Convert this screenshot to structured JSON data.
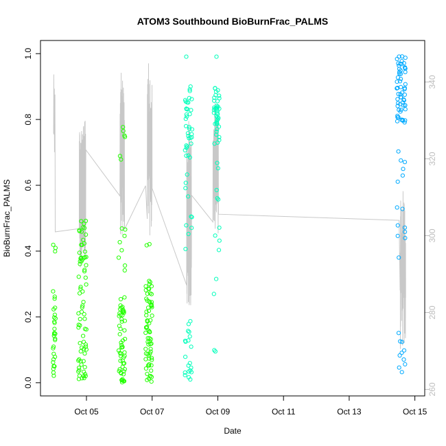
{
  "chart_data": {
    "type": "scatter",
    "title": "ATOM3 Southbound BioBurnFrac_PALMS",
    "xlabel": "Date",
    "ylabel": "BioBurnFrac_PALMS",
    "x_ticks": [
      "Oct 05",
      "Oct 07",
      "Oct 09",
      "Oct 11",
      "Oct 13",
      "Oct 15"
    ],
    "y_ticks": [
      "0.0",
      "0.2",
      "0.4",
      "0.6",
      "0.8",
      "1.0"
    ],
    "y2_ticks": [
      "260",
      "280",
      "300",
      "320",
      "340"
    ],
    "xlim_days": [
      3.6,
      15.3
    ],
    "ylim": [
      -0.04,
      1.04
    ],
    "y2lim": [
      258.3,
      350.8
    ],
    "plot_box": true,
    "grid": false,
    "secondary_series_color": "#c8c8c8",
    "point_color_scale": [
      "#22ff00",
      "#00ffbb",
      "#00aaff"
    ],
    "note": "Points: BioBurnFrac_PALMS (left axis), open circles coloured by time. Grey line: secondary variable on right axis."
  }
}
